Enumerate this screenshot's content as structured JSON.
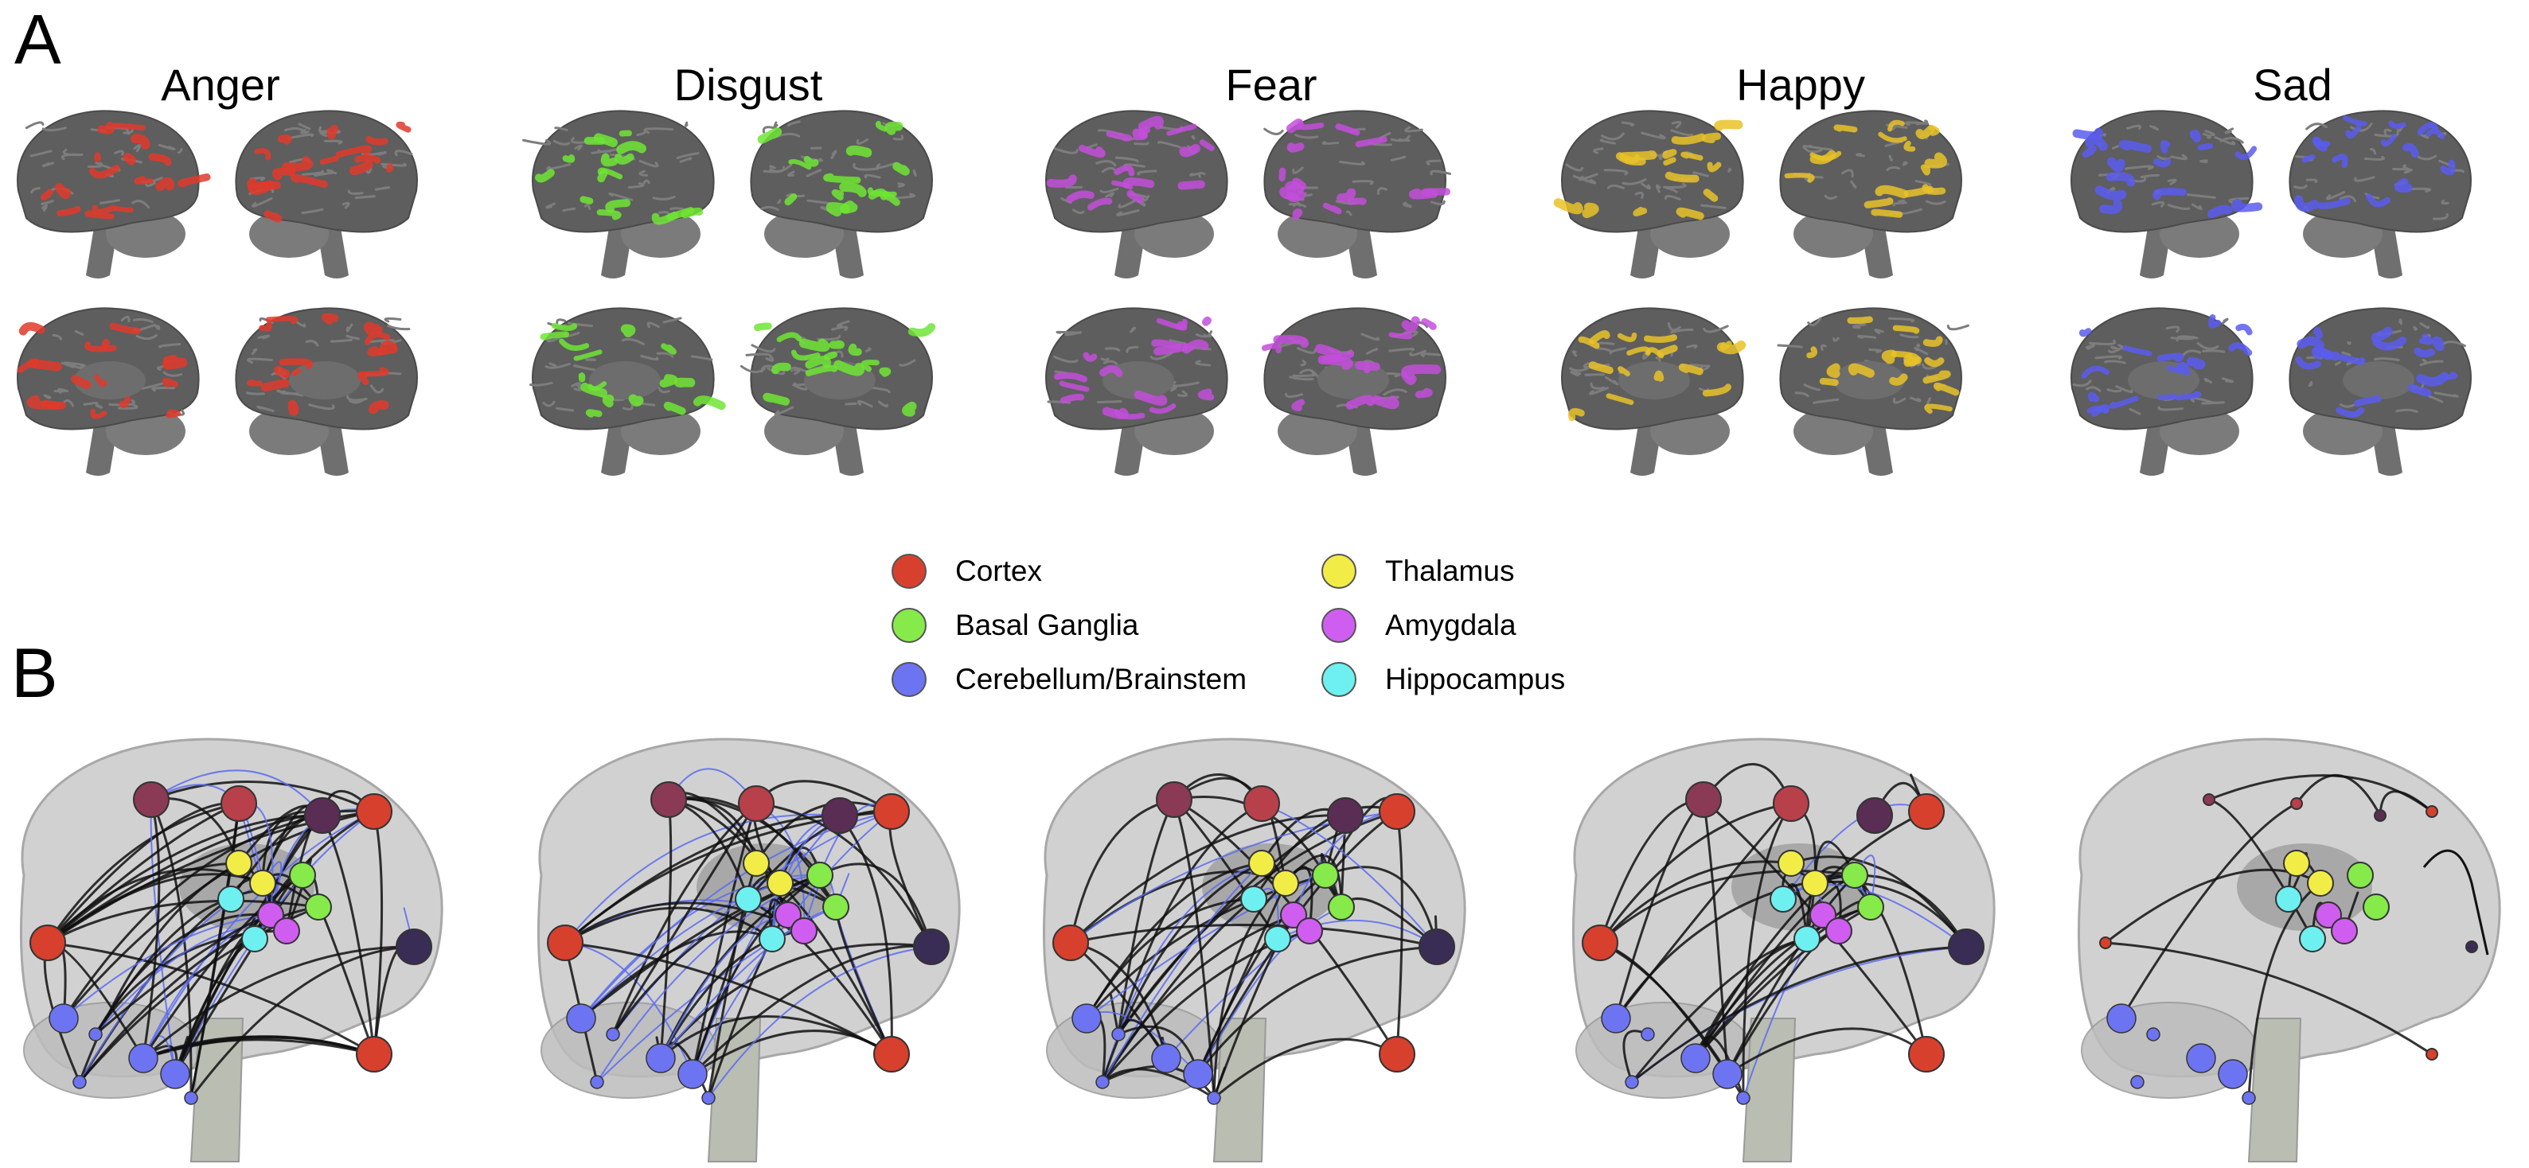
{
  "figure": {
    "panel_a": {
      "label": "A",
      "emotions": [
        {
          "name": "Anger",
          "color": "#e03a2c"
        },
        {
          "name": "Disgust",
          "color": "#6fe534"
        },
        {
          "name": "Fear",
          "color": "#c34ddb"
        },
        {
          "name": "Happy",
          "color": "#e8c228"
        },
        {
          "name": "Sad",
          "color": "#5b5cf0"
        }
      ]
    },
    "panel_b": {
      "label": "B",
      "legend": [
        {
          "label": "Cortex",
          "color": "#d8402e",
          "icon": "cortex-node-icon"
        },
        {
          "label": "Basal Ganglia",
          "color": "#86ea4a",
          "icon": "basal-ganglia-node-icon"
        },
        {
          "label": "Cerebellum/Brainstem",
          "color": "#6d74f2",
          "icon": "cerebellum-node-icon"
        },
        {
          "label": "Thalamus",
          "color": "#f2ec47",
          "icon": "thalamus-node-icon"
        },
        {
          "label": "Amygdala",
          "color": "#cf5ef0",
          "icon": "amygdala-node-icon"
        },
        {
          "label": "Hippocampus",
          "color": "#6ff0f0",
          "icon": "hippocampus-node-icon"
        }
      ]
    }
  }
}
